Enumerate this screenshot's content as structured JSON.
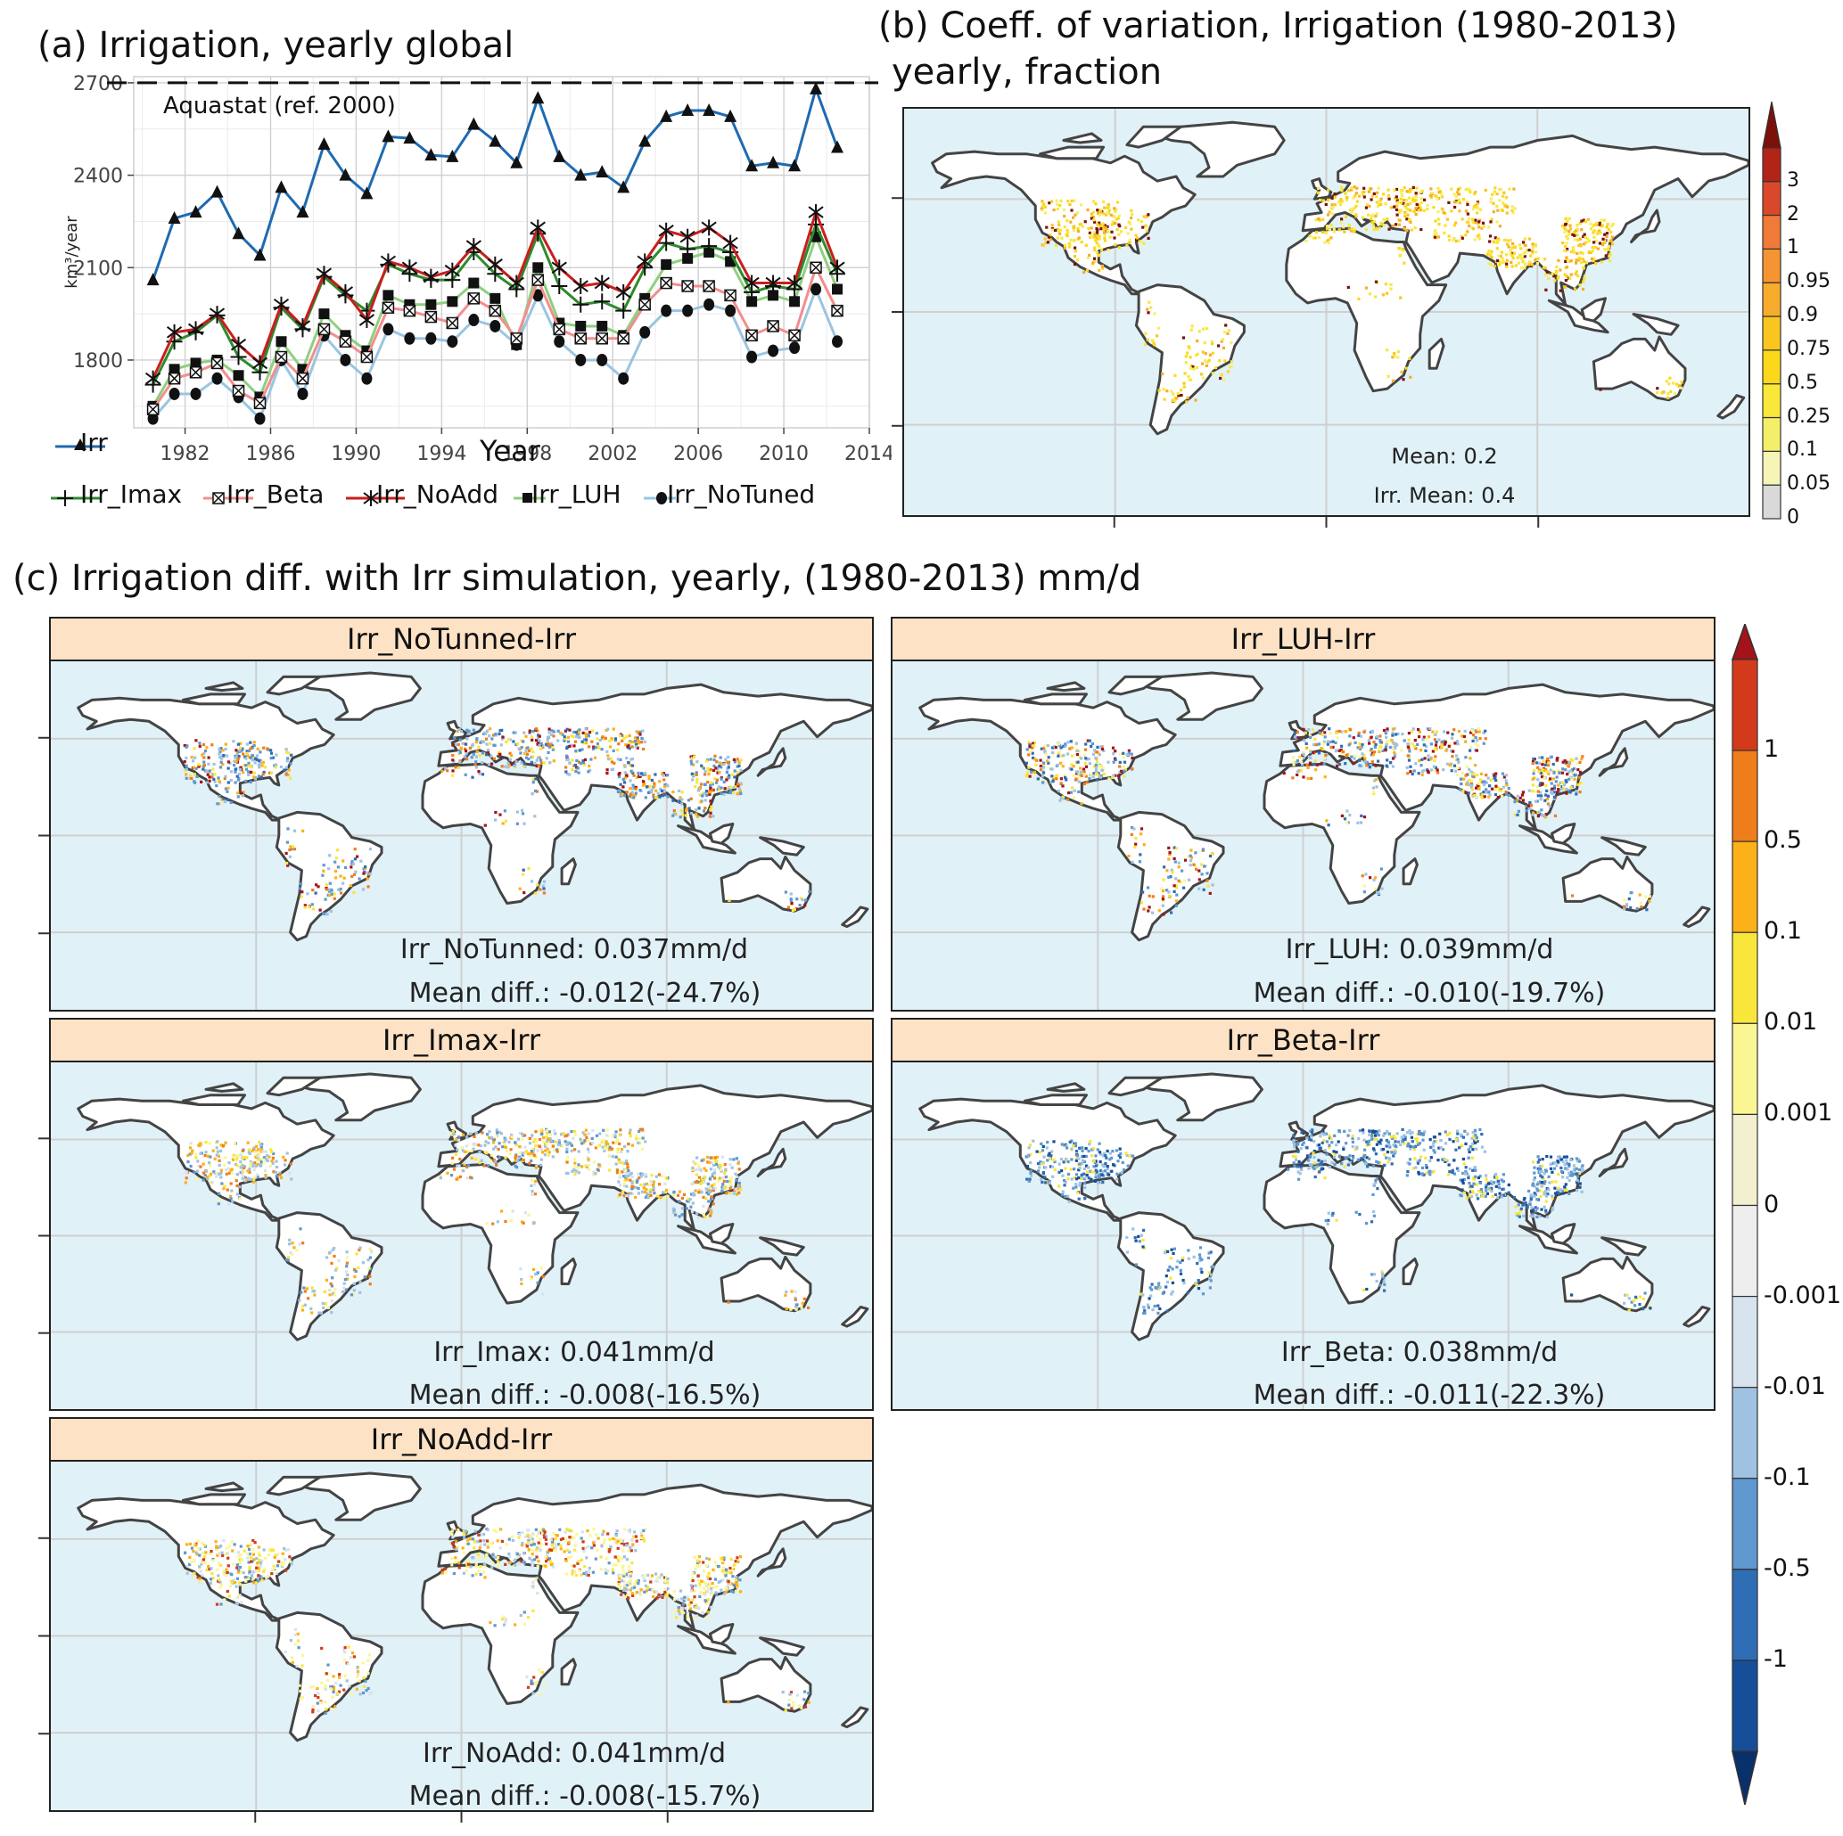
{
  "panel_a": {
    "title": "(a) Irrigation, yearly global",
    "reference_label": "Aquastat (ref. 2000)",
    "xlabel": "Year",
    "ylabel": "km³/year",
    "legend_row1": [
      "Irr"
    ],
    "legend_row2": [
      "Irr_Imax",
      "Irr_Beta",
      "Irr_NoAdd",
      "Irr_LUH",
      "Irr_NoTuned"
    ]
  },
  "panel_b": {
    "title_line1": "(b) Coeff. of variation, Irrigation (1980-2013)",
    "title_line2": "yearly, fraction",
    "annotation1": "Mean: 0.2",
    "annotation2": "Irr. Mean: 0.4",
    "colorbar_labels": [
      "0",
      "0.05",
      "0.1",
      "0.25",
      "0.5",
      "0.75",
      "0.9",
      "0.95",
      "1",
      "2",
      "3"
    ],
    "colorbar_colors": [
      "#d9d9d9",
      "#f7f4b8",
      "#f4ef6a",
      "#f7e83a",
      "#fcd81c",
      "#fbc520",
      "#f8ac2c",
      "#f59432",
      "#f07a38",
      "#d9482b",
      "#b32418",
      "#7c110b"
    ]
  },
  "panel_c": {
    "title": "(c) Irrigation diff. with Irr simulation, yearly, (1980-2013) mm/d",
    "maps": [
      {
        "header": "Irr_NoTunned-Irr",
        "line1": "Irr_NoTunned: 0.037mm/d",
        "line2": "Mean diff.: -0.012(-24.7%)"
      },
      {
        "header": "Irr_LUH-Irr",
        "line1": "Irr_LUH: 0.039mm/d",
        "line2": "Mean diff.: -0.010(-19.7%)"
      },
      {
        "header": "Irr_Imax-Irr",
        "line1": "Irr_Imax: 0.041mm/d",
        "line2": "Mean diff.: -0.008(-16.5%)"
      },
      {
        "header": "Irr_Beta-Irr",
        "line1": "Irr_Beta: 0.038mm/d",
        "line2": "Mean diff.: -0.011(-22.3%)"
      },
      {
        "header": "Irr_NoAdd-Irr",
        "line1": "Irr_NoAdd: 0.041mm/d",
        "line2": "Mean diff.: -0.008(-15.7%)"
      }
    ],
    "colorbar_labels": [
      "1",
      "0.5",
      "0.1",
      "0.01",
      "0.001",
      "0",
      "-0.001",
      "-0.01",
      "-0.1",
      "-0.5",
      "-1"
    ],
    "colorbar_colors": [
      "#a31319",
      "#d33a1c",
      "#f07d1c",
      "#fbb117",
      "#f9e63a",
      "#faf694",
      "#f2f0cf",
      "#eeeeee",
      "#d7e3ee",
      "#9fc2e3",
      "#5f98cf",
      "#2f6db5",
      "#164f98",
      "#08306b"
    ]
  },
  "chart_data": [
    {
      "type": "line",
      "title": "(a) Irrigation, yearly global",
      "xlabel": "Year",
      "ylabel": "km³/year",
      "xlim": [
        1979.6,
        2014
      ],
      "ylim": [
        1580,
        2720
      ],
      "xticks": [
        1982,
        1986,
        1990,
        1994,
        1998,
        2002,
        2006,
        2010,
        2014
      ],
      "yticks": [
        1800,
        2100,
        2400,
        2700
      ],
      "grid": true,
      "legend_position": "bottom",
      "reference_line": {
        "label": "Aquastat (ref. 2000)",
        "y": 2700,
        "style": "dashed"
      },
      "x": [
        1980,
        1981,
        1982,
        1983,
        1984,
        1985,
        1986,
        1987,
        1988,
        1989,
        1990,
        1991,
        1992,
        1993,
        1994,
        1995,
        1996,
        1997,
        1998,
        1999,
        2000,
        2001,
        2002,
        2003,
        2004,
        2005,
        2006,
        2007,
        2008,
        2009,
        2010,
        2011,
        2012
      ],
      "series": [
        {
          "name": "Irr",
          "color": "#1f6ab0",
          "marker": "triangle",
          "values": [
            2060,
            2260,
            2280,
            2345,
            2210,
            2140,
            2360,
            2280,
            2500,
            2400,
            2340,
            2525,
            2520,
            2465,
            2460,
            2565,
            2510,
            2440,
            2650,
            2460,
            2400,
            2410,
            2360,
            2510,
            2590,
            2610,
            2610,
            2590,
            2430,
            2440,
            2430,
            2680,
            2490
          ]
        },
        {
          "name": "Irr_Imax",
          "color": "#2e8b2e",
          "marker": "plus",
          "values": [
            1720,
            1860,
            1890,
            1945,
            1810,
            1760,
            1970,
            1900,
            2070,
            2010,
            1960,
            2110,
            2080,
            2060,
            2060,
            2150,
            2080,
            2030,
            2210,
            2040,
            1980,
            1990,
            1960,
            2100,
            2180,
            2160,
            2170,
            2150,
            2020,
            2040,
            2030,
            2240,
            2080
          ]
        },
        {
          "name": "Irr_Beta",
          "color": "#f28e8e",
          "marker": "box-x",
          "values": [
            1640,
            1740,
            1760,
            1790,
            1700,
            1660,
            1810,
            1740,
            1900,
            1860,
            1810,
            1970,
            1960,
            1940,
            1920,
            2000,
            1960,
            1870,
            2060,
            1900,
            1870,
            1870,
            1870,
            1980,
            2050,
            2040,
            2040,
            2010,
            1880,
            1910,
            1880,
            2100,
            1960
          ]
        },
        {
          "name": "Irr_NoAdd",
          "color": "#c81e1e",
          "marker": "asterisk",
          "values": [
            1740,
            1890,
            1900,
            1950,
            1850,
            1790,
            1980,
            1910,
            2080,
            2020,
            1930,
            2120,
            2100,
            2070,
            2090,
            2170,
            2110,
            2050,
            2230,
            2100,
            2040,
            2050,
            2020,
            2120,
            2220,
            2200,
            2230,
            2180,
            2050,
            2050,
            2050,
            2280,
            2100
          ]
        },
        {
          "name": "Irr_LUH",
          "color": "#8fcf7f",
          "marker": "square",
          "values": [
            1650,
            1770,
            1790,
            1800,
            1750,
            1680,
            1860,
            1770,
            1950,
            1880,
            1830,
            2010,
            1980,
            1980,
            1990,
            2050,
            2000,
            1850,
            2100,
            1920,
            1910,
            1910,
            1880,
            2000,
            2110,
            2130,
            2150,
            2120,
            1990,
            2010,
            1990,
            2200,
            2030
          ]
        },
        {
          "name": "Irr_NoTuned",
          "color": "#9ac5e0",
          "marker": "circle",
          "values": [
            1610,
            1690,
            1690,
            1740,
            1680,
            1610,
            1800,
            1690,
            1880,
            1800,
            1740,
            1900,
            1870,
            1870,
            1860,
            1930,
            1910,
            1850,
            2010,
            1860,
            1800,
            1800,
            1740,
            1890,
            1960,
            1960,
            1980,
            1960,
            1810,
            1830,
            1840,
            2030,
            1860
          ]
        }
      ]
    },
    {
      "type": "heatmap",
      "title": "(b) Coeff. of variation, Irrigation (1980-2013) yearly, fraction",
      "annotations": [
        "Mean: 0.2",
        "Irr. Mean: 0.4"
      ]
    },
    {
      "type": "heatmap",
      "title": "Irr_NoTunned-Irr",
      "annotations": [
        "Irr_NoTunned: 0.037mm/d",
        "Mean diff.: -0.012(-24.7%)"
      ]
    },
    {
      "type": "heatmap",
      "title": "Irr_LUH-Irr",
      "annotations": [
        "Irr_LUH: 0.039mm/d",
        "Mean diff.: -0.010(-19.7%)"
      ]
    },
    {
      "type": "heatmap",
      "title": "Irr_Imax-Irr",
      "annotations": [
        "Irr_Imax: 0.041mm/d",
        "Mean diff.: -0.008(-16.5%)"
      ]
    },
    {
      "type": "heatmap",
      "title": "Irr_Beta-Irr",
      "annotations": [
        "Irr_Beta: 0.038mm/d",
        "Mean diff.: -0.011(-22.3%)"
      ]
    },
    {
      "type": "heatmap",
      "title": "Irr_NoAdd-Irr",
      "annotations": [
        "Irr_NoAdd: 0.041mm/d",
        "Mean diff.: -0.008(-15.7%)"
      ]
    }
  ]
}
